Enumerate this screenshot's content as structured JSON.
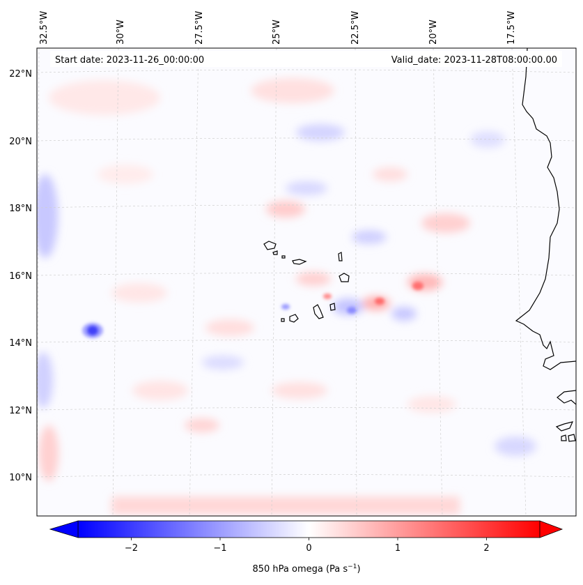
{
  "map": {
    "start_date": "Start date: 2023-11-26_00:00:00",
    "valid_date": "Valid_date: 2023-11-28T08:00:00.00",
    "lon_labels": [
      "32.5°W",
      "30°W",
      "27.5°W",
      "25°W",
      "22.5°W",
      "20°W",
      "17.5°W"
    ],
    "lat_labels": [
      "22°N",
      "20°N",
      "18°N",
      "16°N",
      "14°N",
      "12°N",
      "10°N"
    ],
    "field_name": "850 hPa omega",
    "colors": {
      "negative": "#0000ff",
      "positive": "#ff0000",
      "neutral": "#ffffff",
      "coast": "#000000",
      "grid": "#bbbbbb"
    }
  },
  "colorbar": {
    "ticks": [
      "−2",
      "−1",
      "0",
      "1",
      "2"
    ],
    "tick_values": [
      -2,
      -1,
      0,
      1,
      2
    ],
    "range": [
      -2.6,
      2.6
    ],
    "label_prefix": "850 hPa omega (Pa s",
    "label_exp": "−1",
    "label_suffix": ")"
  }
}
